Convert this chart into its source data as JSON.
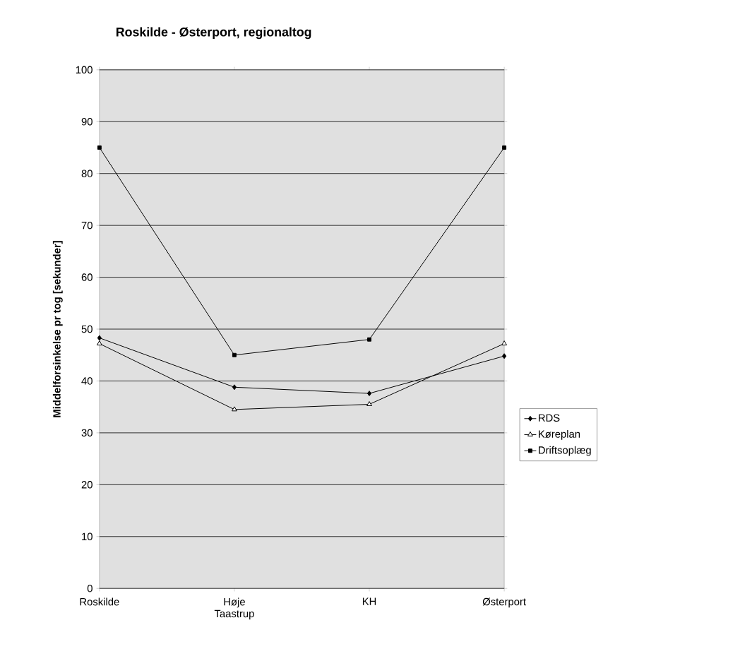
{
  "chart_data": {
    "type": "line",
    "title": "Roskilde - Østerport, regionaltog",
    "ylabel": "Middelforsinkelse pr tog [sekunder]",
    "categories": [
      "Roskilde",
      "Høje Taastrup",
      "KH",
      "Østerport"
    ],
    "series": [
      {
        "name": "RDS",
        "color": "#000000",
        "marker": "diamond",
        "values": [
          48.3,
          38.8,
          37.6,
          44.8
        ]
      },
      {
        "name": "Køreplan",
        "color": "#000000",
        "marker": "triangle",
        "values": [
          47.2,
          34.5,
          35.5,
          47.2
        ]
      },
      {
        "name": "Driftsoplæg",
        "color": "#000000",
        "marker": "square",
        "values": [
          85,
          45,
          48,
          85
        ]
      }
    ],
    "ylim": [
      0,
      100
    ],
    "yticks": [
      0,
      10,
      20,
      30,
      40,
      50,
      60,
      70,
      80,
      90,
      100
    ],
    "grid": "y",
    "legend": "right",
    "line_style": "solid"
  }
}
